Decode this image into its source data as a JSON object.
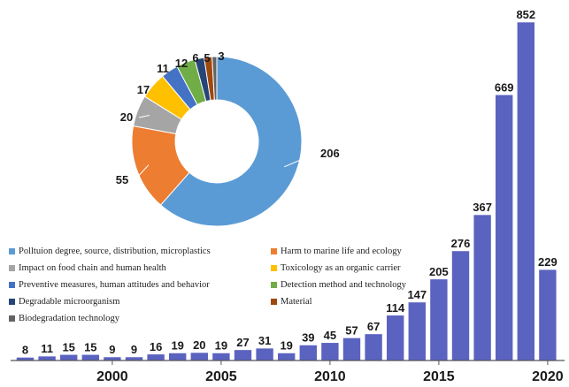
{
  "chart_data": [
    {
      "type": "bar",
      "x": [
        1996,
        1997,
        1998,
        1999,
        2000,
        2001,
        2002,
        2003,
        2004,
        2005,
        2006,
        2007,
        2008,
        2009,
        2010,
        2011,
        2012,
        2013,
        2014,
        2015,
        2016,
        2017,
        2018,
        2019,
        2020
      ],
      "values": [
        8,
        11,
        15,
        15,
        9,
        9,
        16,
        19,
        20,
        19,
        27,
        31,
        19,
        39,
        45,
        57,
        67,
        114,
        147,
        205,
        276,
        367,
        669,
        852,
        229
      ],
      "bar_color": "#5b63c0",
      "xticks": [
        "2000",
        "2005",
        "2010",
        "2015",
        "2020"
      ],
      "ylim": [
        0,
        900
      ],
      "grid": false
    },
    {
      "type": "pie",
      "donut": true,
      "slices": [
        {
          "label": "Polltuion degree, source, distribution, microplastics",
          "value": 206,
          "color": "#5b9bd5"
        },
        {
          "label": "Harm to marine life and ecology",
          "value": 55,
          "color": "#ed7d31"
        },
        {
          "label": "Impact on food chain and human health",
          "value": 20,
          "color": "#a5a5a5"
        },
        {
          "label": "Toxicology as an organic carrier",
          "value": 17,
          "color": "#ffc000"
        },
        {
          "label": "Preventive measures, human attitudes and behavior",
          "value": 11,
          "color": "#4472c4"
        },
        {
          "label": "Detection method and technology",
          "value": 12,
          "color": "#70ad47"
        },
        {
          "label": "Degradable microorganism",
          "value": 6,
          "color": "#264478"
        },
        {
          "label": "Material",
          "value": 5,
          "color": "#9e480e"
        },
        {
          "label": "Biodegradation technology",
          "value": 3,
          "color": "#636363"
        }
      ],
      "legend_placement": "bottom-left"
    }
  ]
}
